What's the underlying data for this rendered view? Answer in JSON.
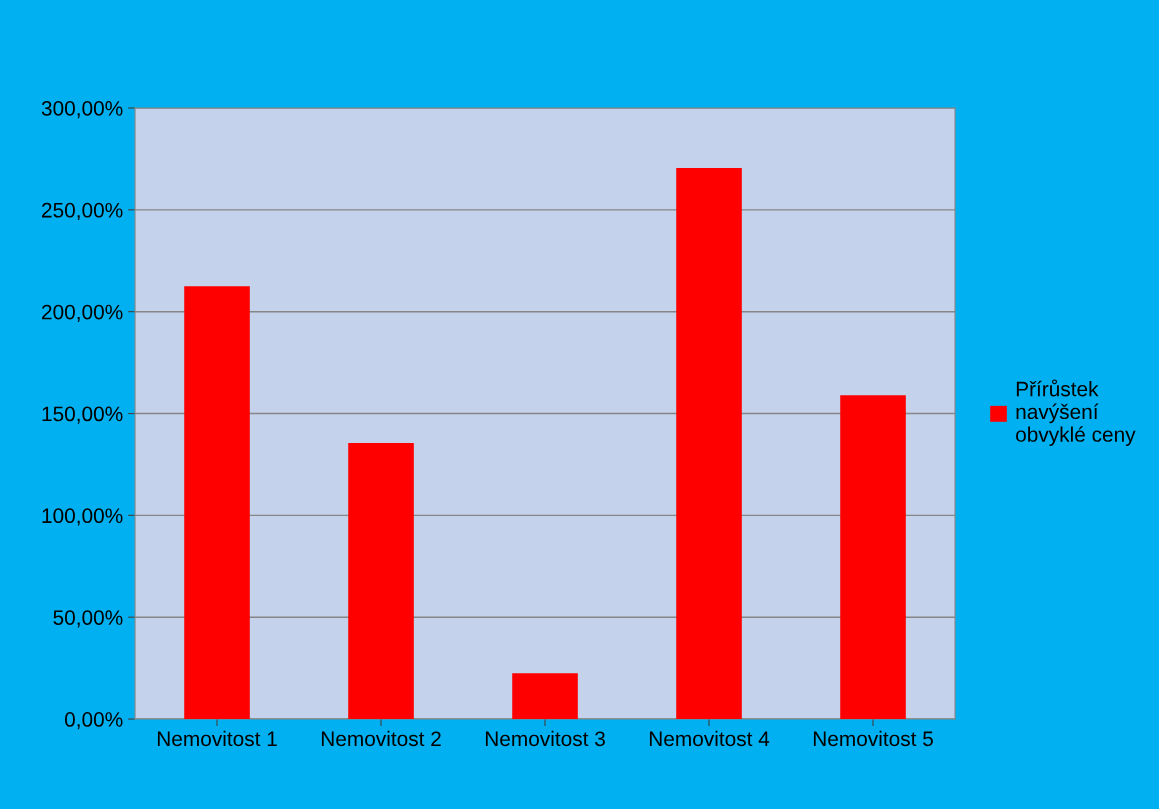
{
  "chart_data": {
    "type": "bar",
    "categories": [
      "Nemovitost 1",
      "Nemovitost 2",
      "Nemovitost 3",
      "Nemovitost 4",
      "Nemovitost 5"
    ],
    "series": [
      {
        "name": "Přírůstek\nnavýšení\nobvyklé ceny",
        "color": "#ff0000",
        "values": [
          212.5,
          135.5,
          22.5,
          270.5,
          159
        ]
      }
    ],
    "ylim": [
      0,
      300
    ],
    "yticks": [
      {
        "value": 0,
        "label": "0,00%"
      },
      {
        "value": 50,
        "label": "50,00%"
      },
      {
        "value": 100,
        "label": "100,00%"
      },
      {
        "value": 150,
        "label": "150,00%"
      },
      {
        "value": 200,
        "label": "200,00%"
      },
      {
        "value": 250,
        "label": "250,00%"
      },
      {
        "value": 300,
        "label": "300,00%"
      }
    ],
    "grid": "y",
    "legend": "right"
  }
}
